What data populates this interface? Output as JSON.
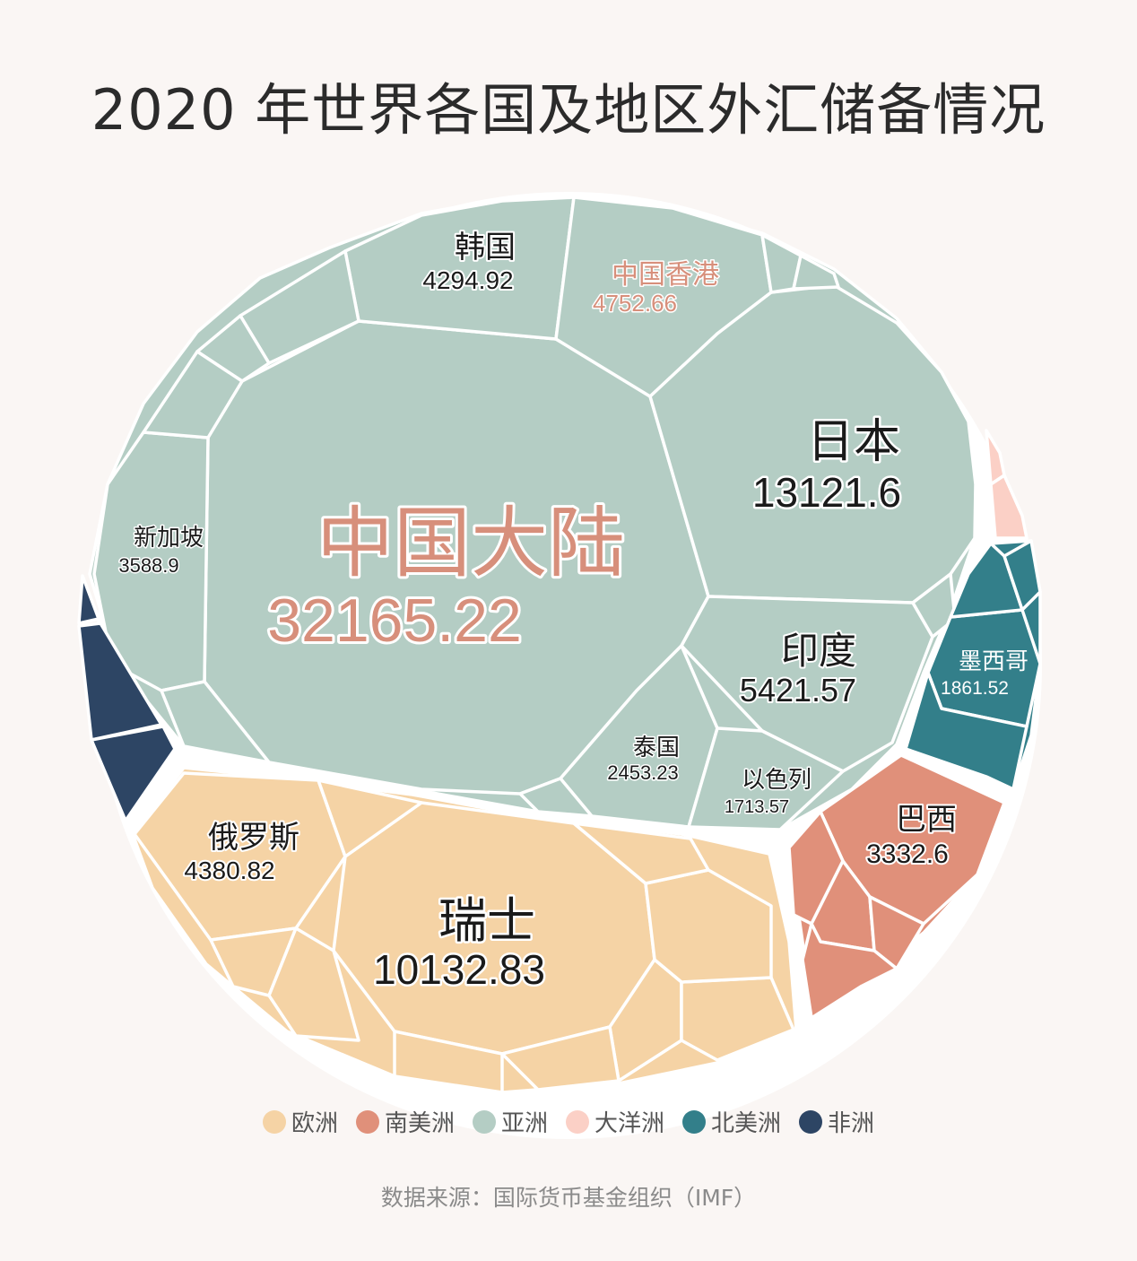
{
  "title": "2020 年世界各国及地区外汇储备情况",
  "source": "数据来源：国际货币基金组织（IMF）",
  "colors": {
    "欧洲": "#f5d3a5",
    "南美洲": "#e0907a",
    "亚洲": "#b4cdc4",
    "大洋洲": "#fbd0c6",
    "北美洲": "#337f8a",
    "非洲": "#2d4564",
    "highlight_text": "#d78f7b"
  },
  "legend": [
    {
      "name": "欧洲",
      "color": "#f5d3a5"
    },
    {
      "name": "南美洲",
      "color": "#e0907a"
    },
    {
      "name": "亚洲",
      "color": "#b4cdc4"
    },
    {
      "name": "大洋洲",
      "color": "#fbd0c6"
    },
    {
      "name": "北美洲",
      "color": "#337f8a"
    },
    {
      "name": "非洲",
      "color": "#2d4564"
    }
  ],
  "chart_data": {
    "type": "voronoi-treemap",
    "unit": "",
    "labeled_cells": [
      {
        "name": "中国大陆",
        "value": 32165.22,
        "value_label": "32165.22",
        "region": "亚洲"
      },
      {
        "name": "日本",
        "value": 13121.6,
        "value_label": "13121.6",
        "region": "亚洲"
      },
      {
        "name": "瑞士",
        "value": 10132.83,
        "value_label": "10132.83",
        "region": "欧洲"
      },
      {
        "name": "印度",
        "value": 5421.57,
        "value_label": "5421.57",
        "region": "亚洲"
      },
      {
        "name": "中国香港",
        "value": 4752.66,
        "value_label": "4752.66",
        "region": "亚洲"
      },
      {
        "name": "俄罗斯",
        "value": 4380.82,
        "value_label": "4380.82",
        "region": "欧洲"
      },
      {
        "name": "韩国",
        "value": 4294.92,
        "value_label": "4294.92",
        "region": "亚洲"
      },
      {
        "name": "新加坡",
        "value": 3588.9,
        "value_label": "3588.9",
        "region": "亚洲"
      },
      {
        "name": "巴西",
        "value": 3332.6,
        "value_label": "3332.6",
        "region": "南美洲"
      },
      {
        "name": "泰国",
        "value": 2453.23,
        "value_label": "2453.23",
        "region": "亚洲"
      },
      {
        "name": "墨西哥",
        "value": 1861.52,
        "value_label": "1861.52",
        "region": "北美洲"
      },
      {
        "name": "以色列",
        "value": 1713.57,
        "value_label": "1713.57",
        "region": "亚洲"
      }
    ]
  }
}
